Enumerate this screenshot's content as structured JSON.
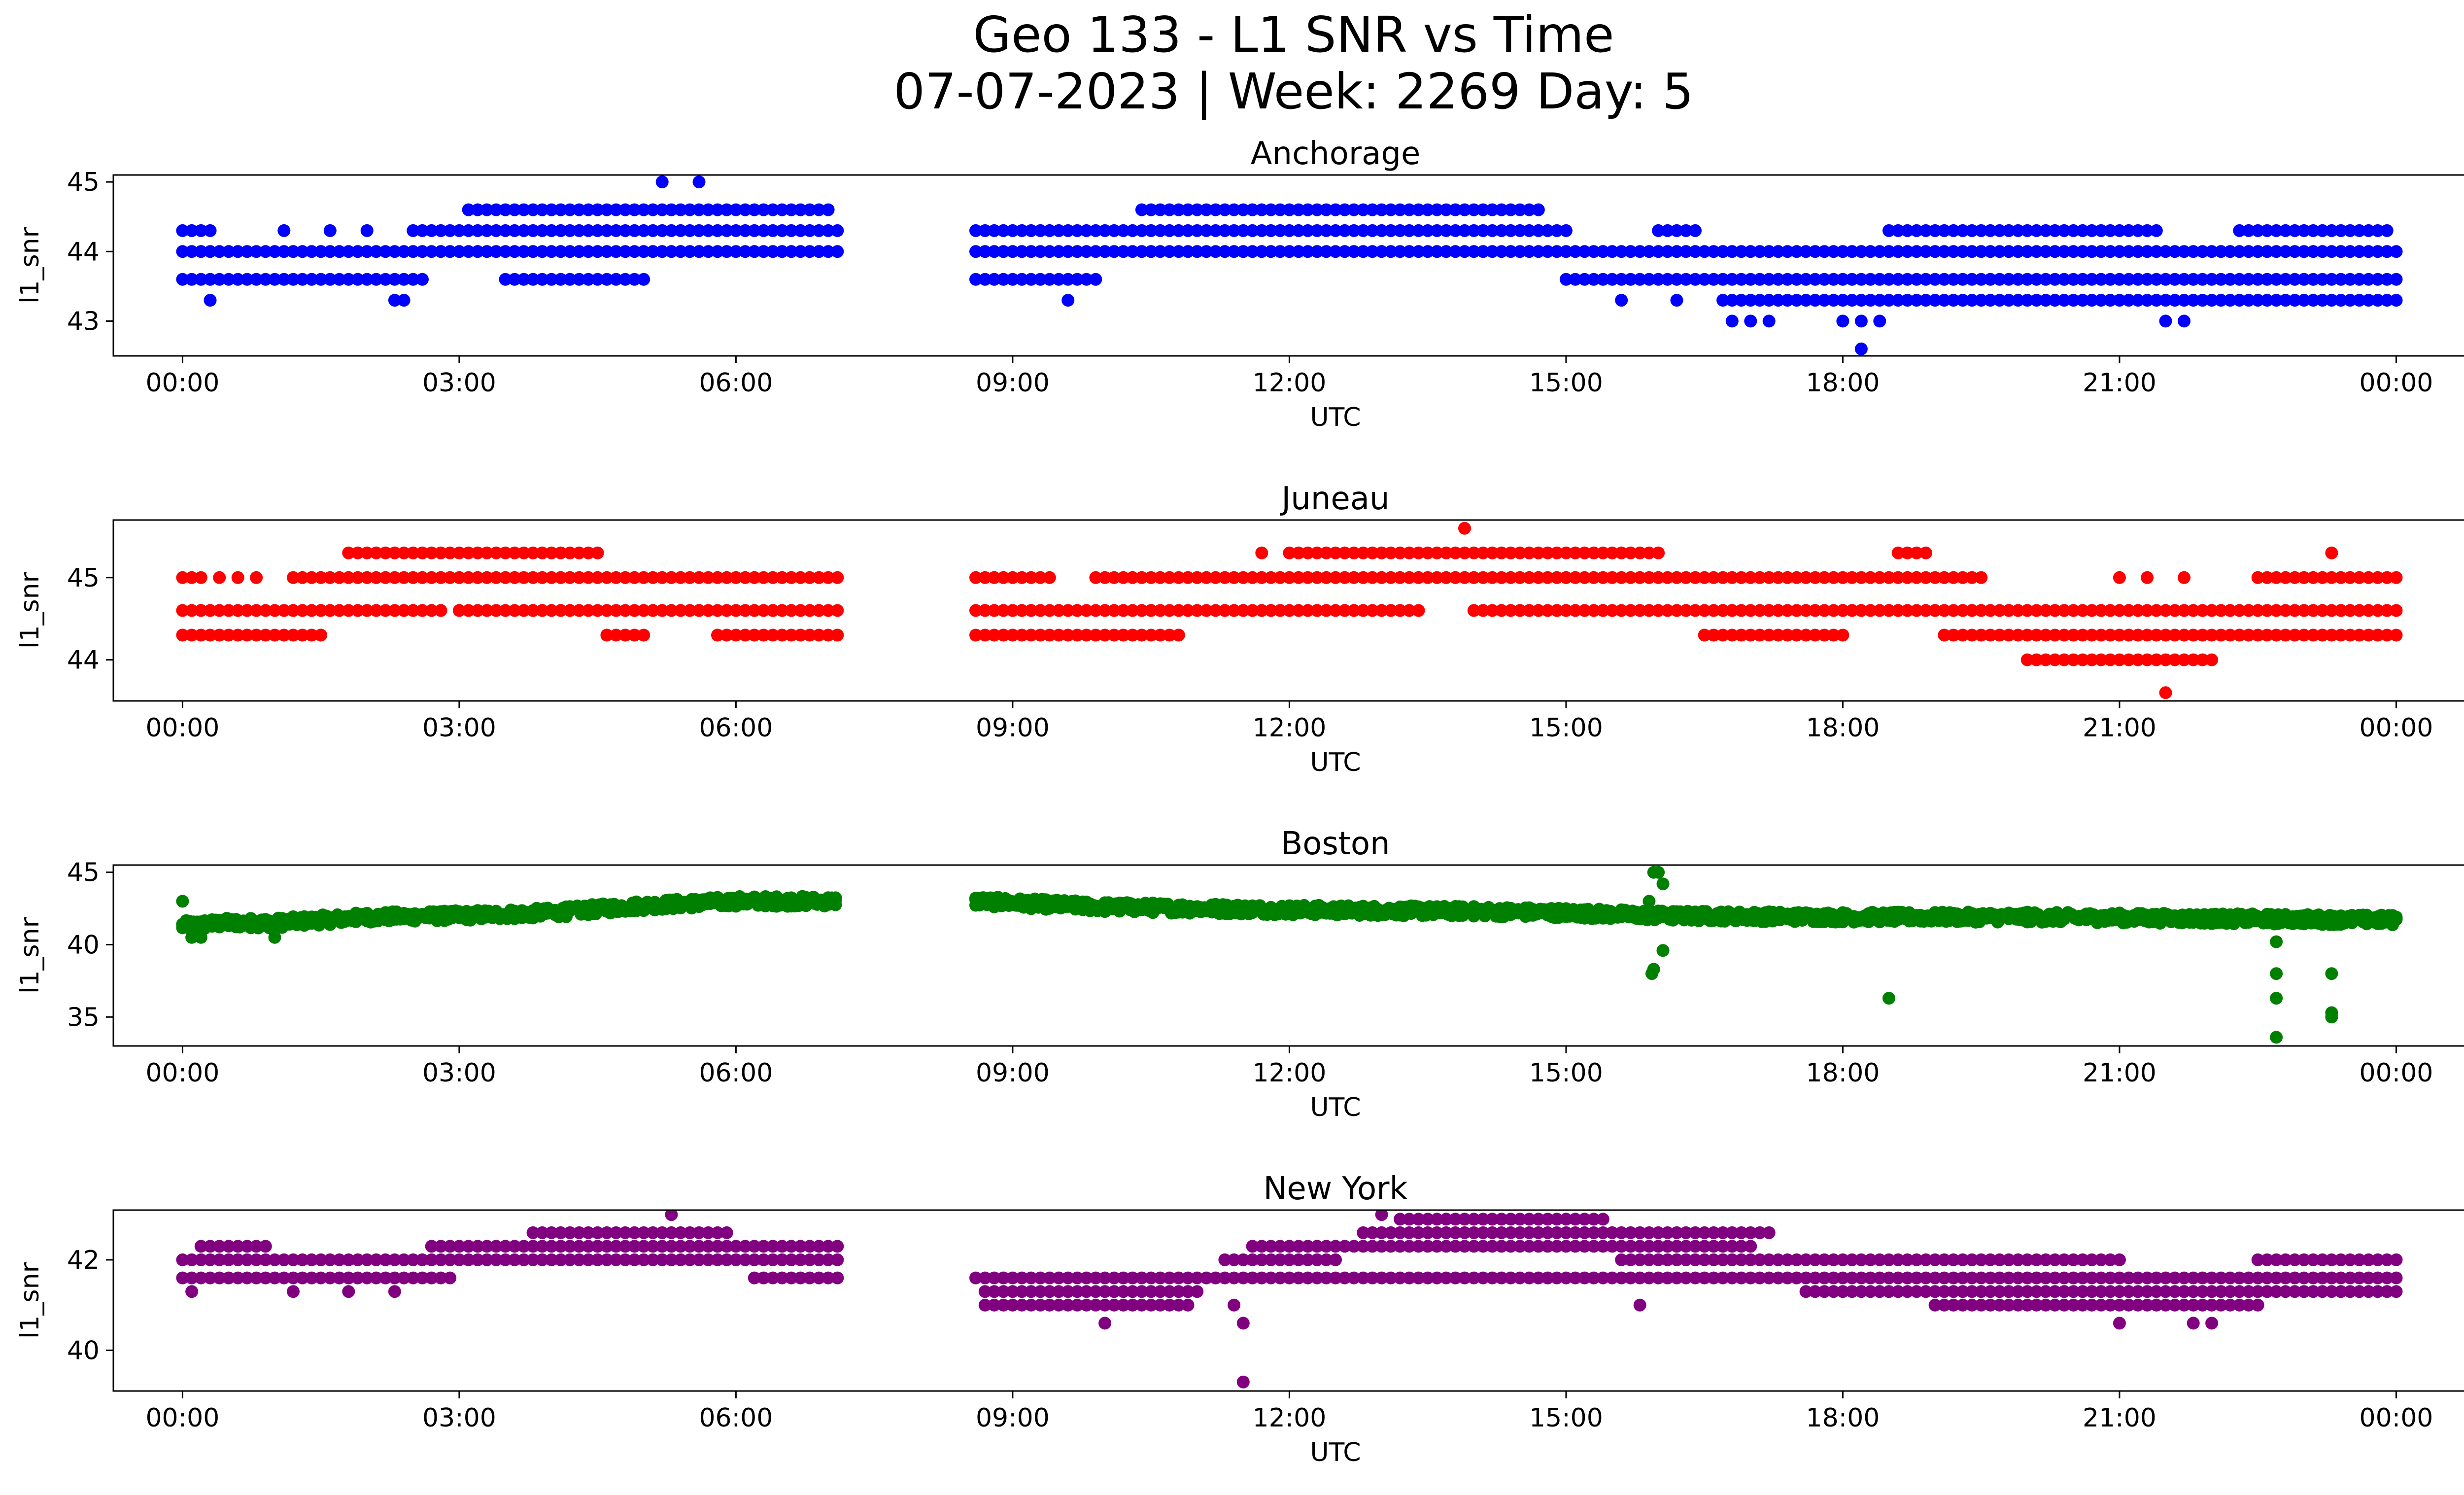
{
  "figure": {
    "title_line1": "Geo 133 - L1 SNR vs Time",
    "title_line2": "07-07-2023 | Week: 2269 Day: 5"
  },
  "chart_data": [
    {
      "type": "scatter",
      "title": "Anchorage",
      "xlabel": "UTC",
      "ylabel": "l1_snr",
      "color": "#0000ff",
      "xlim_hours": [
        -0.75,
        25.75
      ],
      "ylim": [
        42.5,
        45.1
      ],
      "x_ticks": [
        "00:00",
        "03:00",
        "06:00",
        "09:00",
        "12:00",
        "15:00",
        "18:00",
        "21:00",
        "00:00"
      ],
      "y_ticks": [
        43,
        44,
        45
      ],
      "gap_hours": [
        7.1,
        8.6
      ],
      "bands": [
        {
          "y": 43.6,
          "segments": [
            [
              0.0,
              2.6
            ],
            [
              3.5,
              5.0
            ],
            [
              8.6,
              9.9
            ],
            [
              15.0,
              24.0
            ]
          ]
        },
        {
          "y": 44.0,
          "segments": [
            [
              0.0,
              7.1
            ],
            [
              8.6,
              24.0
            ]
          ]
        },
        {
          "y": 44.3,
          "segments": [
            [
              0.0,
              0.3
            ],
            [
              2.5,
              7.1
            ],
            [
              8.6,
              15.0
            ],
            [
              16.0,
              16.4
            ],
            [
              18.5,
              21.4
            ],
            [
              22.3,
              23.9
            ]
          ]
        },
        {
          "y": 44.6,
          "segments": [
            [
              3.1,
              7.0
            ],
            [
              10.4,
              14.7
            ]
          ]
        },
        {
          "y": 43.3,
          "segments": [
            [
              16.7,
              24.0
            ]
          ]
        }
      ],
      "sparse": [
        {
          "y": 45.0,
          "x": [
            5.2,
            5.6
          ]
        },
        {
          "y": 43.3,
          "x": [
            0.3,
            2.3,
            2.4,
            9.6,
            15.6,
            16.2
          ]
        },
        {
          "y": 43.0,
          "x": [
            16.8,
            17.0,
            17.2,
            18.0,
            18.2,
            18.4,
            21.5,
            21.7
          ]
        },
        {
          "y": 42.6,
          "x": [
            18.2
          ]
        },
        {
          "y": 44.3,
          "x": [
            1.1,
            1.6,
            2.0
          ]
        }
      ],
      "noise": 0.0
    },
    {
      "type": "scatter",
      "title": "Juneau",
      "xlabel": "UTC",
      "ylabel": "l1_snr",
      "color": "#ff0000",
      "xlim_hours": [
        -0.75,
        25.75
      ],
      "ylim": [
        43.5,
        45.7
      ],
      "x_ticks": [
        "00:00",
        "03:00",
        "06:00",
        "09:00",
        "12:00",
        "15:00",
        "18:00",
        "21:00",
        "00:00"
      ],
      "y_ticks": [
        44,
        45
      ],
      "gap_hours": [
        7.1,
        8.6
      ],
      "bands": [
        {
          "y": 44.3,
          "segments": [
            [
              0.0,
              1.5
            ],
            [
              4.6,
              5.0
            ],
            [
              5.8,
              7.1
            ],
            [
              8.6,
              10.8
            ],
            [
              16.5,
              18.0
            ],
            [
              19.1,
              24.0
            ]
          ]
        },
        {
          "y": 44.6,
          "segments": [
            [
              0.0,
              2.8
            ],
            [
              3.0,
              7.1
            ],
            [
              8.6,
              13.4
            ],
            [
              14.0,
              24.0
            ]
          ]
        },
        {
          "y": 45.0,
          "segments": [
            [
              0.0,
              0.2
            ],
            [
              1.2,
              7.1
            ],
            [
              8.6,
              9.4
            ],
            [
              9.9,
              19.5
            ],
            [
              22.5,
              24.0
            ]
          ]
        },
        {
          "y": 45.3,
          "segments": [
            [
              1.8,
              4.5
            ],
            [
              12.0,
              16.0
            ],
            [
              18.6,
              18.9
            ]
          ]
        },
        {
          "y": 44.0,
          "segments": [
            [
              20.0,
              22.0
            ]
          ]
        }
      ],
      "sparse": [
        {
          "y": 45.6,
          "x": [
            13.9
          ]
        },
        {
          "y": 43.6,
          "x": [
            21.5
          ]
        },
        {
          "y": 45.0,
          "x": [
            0.4,
            0.6,
            0.8,
            8.8,
            21.0,
            21.3,
            21.7
          ]
        },
        {
          "y": 45.3,
          "x": [
            11.7,
            23.3
          ]
        }
      ],
      "noise": 0.0
    },
    {
      "type": "scatter",
      "title": "Boston",
      "xlabel": "UTC",
      "ylabel": "l1_snr",
      "color": "#008000",
      "xlim_hours": [
        -0.75,
        25.75
      ],
      "ylim": [
        33.0,
        45.5
      ],
      "x_ticks": [
        "00:00",
        "03:00",
        "06:00",
        "09:00",
        "12:00",
        "15:00",
        "18:00",
        "21:00",
        "00:00"
      ],
      "y_ticks": [
        35,
        40,
        45
      ],
      "gap_hours": [
        7.1,
        8.6
      ],
      "trend": [
        {
          "x": 0.0,
          "y": 41.3
        },
        {
          "x": 0.5,
          "y": 41.5
        },
        {
          "x": 1.0,
          "y": 41.5
        },
        {
          "x": 2.0,
          "y": 41.9
        },
        {
          "x": 3.0,
          "y": 42.0
        },
        {
          "x": 4.0,
          "y": 42.2
        },
        {
          "x": 5.0,
          "y": 42.7
        },
        {
          "x": 6.0,
          "y": 43.0
        },
        {
          "x": 7.1,
          "y": 43.0
        },
        {
          "x": 8.6,
          "y": 43.0
        },
        {
          "x": 10.0,
          "y": 42.6
        },
        {
          "x": 12.0,
          "y": 42.4
        },
        {
          "x": 14.0,
          "y": 42.3
        },
        {
          "x": 15.0,
          "y": 42.2
        },
        {
          "x": 16.0,
          "y": 42.0
        },
        {
          "x": 18.0,
          "y": 41.9
        },
        {
          "x": 20.0,
          "y": 41.9
        },
        {
          "x": 22.0,
          "y": 41.8
        },
        {
          "x": 24.0,
          "y": 41.7
        }
      ],
      "sparse": [
        {
          "y": 45.0,
          "x": [
            15.95,
            16.0
          ]
        },
        {
          "y": 44.2,
          "x": [
            16.05
          ]
        },
        {
          "y": 43.0,
          "x": [
            0.0,
            15.9
          ]
        },
        {
          "y": 40.5,
          "x": [
            0.1,
            0.2,
            1.0
          ]
        },
        {
          "y": 39.6,
          "x": [
            16.05
          ]
        },
        {
          "y": 38.3,
          "x": [
            15.95
          ]
        },
        {
          "y": 38.0,
          "x": [
            15.93,
            23.3
          ]
        },
        {
          "y": 36.3,
          "x": [
            18.5,
            22.7
          ]
        },
        {
          "y": 38.0,
          "x": [
            22.7
          ]
        },
        {
          "y": 40.2,
          "x": [
            22.7
          ]
        },
        {
          "y": 35.3,
          "x": [
            23.3
          ]
        },
        {
          "y": 35.0,
          "x": [
            23.3
          ]
        },
        {
          "y": 33.6,
          "x": [
            22.7
          ]
        }
      ],
      "noise": 0.7
    },
    {
      "type": "scatter",
      "title": "New York",
      "xlabel": "UTC",
      "ylabel": "l1_snr",
      "color": "#800080",
      "xlim_hours": [
        -0.75,
        25.75
      ],
      "ylim": [
        39.1,
        43.1
      ],
      "x_ticks": [
        "00:00",
        "03:00",
        "06:00",
        "09:00",
        "12:00",
        "15:00",
        "18:00",
        "21:00",
        "00:00"
      ],
      "y_ticks": [
        40,
        42
      ],
      "gap_hours": [
        7.1,
        8.6
      ],
      "bands": [
        {
          "y": 41.6,
          "segments": [
            [
              0.0,
              2.9
            ],
            [
              6.2,
              7.1
            ],
            [
              8.6,
              24.0
            ]
          ]
        },
        {
          "y": 42.0,
          "segments": [
            [
              0.0,
              7.1
            ],
            [
              11.3,
              12.5
            ],
            [
              15.6,
              21.0
            ],
            [
              22.5,
              24.0
            ]
          ]
        },
        {
          "y": 42.3,
          "segments": [
            [
              0.2,
              0.9
            ],
            [
              2.7,
              7.1
            ],
            [
              11.6,
              17.0
            ]
          ]
        },
        {
          "y": 42.6,
          "segments": [
            [
              3.8,
              5.9
            ],
            [
              12.8,
              17.2
            ]
          ]
        },
        {
          "y": 41.3,
          "segments": [
            [
              8.7,
              11.0
            ],
            [
              17.6,
              24.0
            ]
          ]
        },
        {
          "y": 41.0,
          "segments": [
            [
              8.7,
              10.9
            ],
            [
              19.0,
              22.5
            ]
          ]
        },
        {
          "y": 42.9,
          "segments": [
            [
              13.2,
              15.4
            ]
          ]
        }
      ],
      "sparse": [
        {
          "y": 43.0,
          "x": [
            13.0,
            5.3
          ]
        },
        {
          "y": 40.6,
          "x": [
            10.0,
            11.5,
            21.0,
            21.8,
            22.0
          ]
        },
        {
          "y": 39.3,
          "x": [
            11.5
          ]
        },
        {
          "y": 41.3,
          "x": [
            0.1,
            1.2,
            1.8,
            2.3
          ]
        },
        {
          "y": 41.0,
          "x": [
            11.4,
            15.8
          ]
        }
      ],
      "noise": 0.0
    }
  ]
}
